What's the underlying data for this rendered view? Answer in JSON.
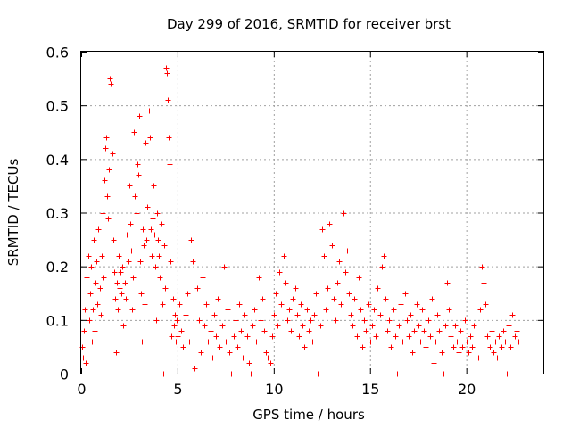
{
  "chart_data": {
    "type": "scatter",
    "title": "Day 299 of 2016, SRMTID for receiver brst",
    "xlabel": "GPS time / hours",
    "ylabel": "SRMTID / TECUs",
    "xlim": [
      0,
      24
    ],
    "ylim": [
      0,
      0.6
    ],
    "xticks": [
      0,
      5,
      10,
      15,
      20
    ],
    "xtick_labels": [
      "0",
      "5",
      "10",
      "15",
      "20"
    ],
    "yticks": [
      0,
      0.1,
      0.2,
      0.3,
      0.4,
      0.5,
      0.6
    ],
    "ytick_labels": [
      "0",
      "0.1",
      "0.2",
      "0.3",
      "0.4",
      "0.5",
      "0.6"
    ],
    "grid": true,
    "marker": "+",
    "colors": {
      "marker": "#ff0000"
    },
    "series": [
      {
        "name": "SRMTID",
        "points": [
          [
            0.05,
            0.05
          ],
          [
            0.1,
            0.03
          ],
          [
            0.15,
            0.08
          ],
          [
            0.2,
            0.12
          ],
          [
            0.25,
            0.02
          ],
          [
            0.3,
            0.18
          ],
          [
            0.35,
            0.22
          ],
          [
            0.4,
            0.1
          ],
          [
            0.45,
            0.15
          ],
          [
            0.5,
            0.2
          ],
          [
            0.55,
            0.06
          ],
          [
            0.6,
            0.12
          ],
          [
            0.65,
            0.25
          ],
          [
            0.7,
            0.08
          ],
          [
            0.75,
            0.17
          ],
          [
            0.8,
            0.21
          ],
          [
            0.85,
            0.13
          ],
          [
            0.9,
            0.27
          ],
          [
            0.95,
            0.16
          ],
          [
            1.0,
            0.11
          ],
          [
            1.05,
            0.22
          ],
          [
            1.1,
            0.3
          ],
          [
            1.15,
            0.18
          ],
          [
            1.2,
            0.36
          ],
          [
            1.25,
            0.42
          ],
          [
            1.3,
            0.44
          ],
          [
            1.35,
            0.33
          ],
          [
            1.4,
            0.29
          ],
          [
            1.45,
            0.38
          ],
          [
            1.5,
            0.55
          ],
          [
            1.55,
            0.54
          ],
          [
            1.6,
            0.41
          ],
          [
            1.65,
            0.25
          ],
          [
            1.7,
            0.19
          ],
          [
            1.75,
            0.14
          ],
          [
            1.8,
            0.04
          ],
          [
            1.85,
            0.17
          ],
          [
            1.9,
            0.12
          ],
          [
            1.95,
            0.22
          ],
          [
            2.0,
            0.16
          ],
          [
            2.05,
            0.19
          ],
          [
            2.1,
            0.15
          ],
          [
            2.15,
            0.2
          ],
          [
            2.2,
            0.09
          ],
          [
            2.25,
            0.17
          ],
          [
            2.3,
            0.14
          ],
          [
            2.35,
            0.26
          ],
          [
            2.4,
            0.32
          ],
          [
            2.45,
            0.21
          ],
          [
            2.5,
            0.35
          ],
          [
            2.55,
            0.28
          ],
          [
            2.6,
            0.23
          ],
          [
            2.65,
            0.12
          ],
          [
            2.7,
            0.18
          ],
          [
            2.75,
            0.45
          ],
          [
            2.8,
            0.33
          ],
          [
            2.85,
            0.3
          ],
          [
            2.9,
            0.39
          ],
          [
            2.95,
            0.37
          ],
          [
            3.0,
            0.48
          ],
          [
            3.05,
            0.21
          ],
          [
            3.1,
            0.15
          ],
          [
            3.15,
            0.06
          ],
          [
            3.2,
            0.27
          ],
          [
            3.25,
            0.24
          ],
          [
            3.3,
            0.13
          ],
          [
            3.35,
            0.43
          ],
          [
            3.4,
            0.25
          ],
          [
            3.45,
            0.31
          ],
          [
            3.5,
            0.49
          ],
          [
            3.55,
            0.44
          ],
          [
            3.6,
            0.27
          ],
          [
            3.65,
            0.22
          ],
          [
            3.7,
            0.29
          ],
          [
            3.75,
            0.35
          ],
          [
            3.8,
            0.26
          ],
          [
            3.85,
            0.2
          ],
          [
            3.9,
            0.1
          ],
          [
            3.95,
            0.3
          ],
          [
            4.0,
            0.25
          ],
          [
            4.05,
            0.22
          ],
          [
            4.1,
            0.18
          ],
          [
            4.15,
            0.28
          ],
          [
            4.2,
            0.13
          ],
          [
            4.25,
            0.0
          ],
          [
            4.3,
            0.24
          ],
          [
            4.35,
            0.16
          ],
          [
            4.4,
            0.57
          ],
          [
            4.45,
            0.56
          ],
          [
            4.5,
            0.51
          ],
          [
            4.55,
            0.44
          ],
          [
            4.6,
            0.39
          ],
          [
            4.65,
            0.21
          ],
          [
            4.7,
            0.07
          ],
          [
            4.75,
            0.14
          ],
          [
            4.8,
            0.09
          ],
          [
            4.85,
            0.11
          ],
          [
            4.9,
            0.06
          ],
          [
            4.95,
            0.1
          ],
          [
            5.0,
            0.07
          ],
          [
            5.1,
            0.13
          ],
          [
            5.2,
            0.08
          ],
          [
            5.3,
            0.05
          ],
          [
            5.4,
            0.11
          ],
          [
            5.5,
            0.15
          ],
          [
            5.6,
            0.06
          ],
          [
            5.7,
            0.25
          ],
          [
            5.8,
            0.21
          ],
          [
            5.9,
            0.01
          ],
          [
            6.0,
            0.16
          ],
          [
            6.1,
            0.1
          ],
          [
            6.2,
            0.04
          ],
          [
            6.3,
            0.18
          ],
          [
            6.4,
            0.09
          ],
          [
            6.5,
            0.13
          ],
          [
            6.6,
            0.06
          ],
          [
            6.7,
            0.08
          ],
          [
            6.8,
            0.03
          ],
          [
            6.9,
            0.11
          ],
          [
            7.0,
            0.07
          ],
          [
            7.1,
            0.14
          ],
          [
            7.2,
            0.05
          ],
          [
            7.3,
            0.09
          ],
          [
            7.4,
            0.2
          ],
          [
            7.5,
            0.06
          ],
          [
            7.6,
            0.12
          ],
          [
            7.7,
            0.04
          ],
          [
            7.8,
            0.0
          ],
          [
            7.9,
            0.07
          ],
          [
            8.0,
            0.1
          ],
          [
            8.1,
            0.05
          ],
          [
            8.2,
            0.13
          ],
          [
            8.3,
            0.08
          ],
          [
            8.4,
            0.03
          ],
          [
            8.5,
            0.11
          ],
          [
            8.6,
            0.07
          ],
          [
            8.7,
            0.02
          ],
          [
            8.8,
            0.0
          ],
          [
            8.9,
            0.09
          ],
          [
            9.0,
            0.12
          ],
          [
            9.1,
            0.06
          ],
          [
            9.2,
            0.18
          ],
          [
            9.3,
            0.1
          ],
          [
            9.4,
            0.14
          ],
          [
            9.5,
            0.08
          ],
          [
            9.6,
            0.04
          ],
          [
            9.7,
            0.03
          ],
          [
            9.8,
            0.02
          ],
          [
            9.9,
            0.07
          ],
          [
            10.0,
            0.11
          ],
          [
            10.1,
            0.15
          ],
          [
            10.2,
            0.09
          ],
          [
            10.3,
            0.19
          ],
          [
            10.4,
            0.13
          ],
          [
            10.5,
            0.22
          ],
          [
            10.6,
            0.17
          ],
          [
            10.7,
            0.1
          ],
          [
            10.8,
            0.12
          ],
          [
            10.9,
            0.08
          ],
          [
            11.0,
            0.14
          ],
          [
            11.1,
            0.16
          ],
          [
            11.2,
            0.11
          ],
          [
            11.3,
            0.07
          ],
          [
            11.4,
            0.13
          ],
          [
            11.5,
            0.09
          ],
          [
            11.6,
            0.05
          ],
          [
            11.7,
            0.12
          ],
          [
            11.8,
            0.08
          ],
          [
            11.9,
            0.1
          ],
          [
            12.0,
            0.06
          ],
          [
            12.1,
            0.11
          ],
          [
            12.2,
            0.15
          ],
          [
            12.3,
            0.0
          ],
          [
            12.4,
            0.09
          ],
          [
            12.5,
            0.27
          ],
          [
            12.6,
            0.22
          ],
          [
            12.7,
            0.12
          ],
          [
            12.8,
            0.16
          ],
          [
            12.9,
            0.28
          ],
          [
            13.0,
            0.24
          ],
          [
            13.1,
            0.14
          ],
          [
            13.2,
            0.1
          ],
          [
            13.3,
            0.17
          ],
          [
            13.4,
            0.21
          ],
          [
            13.5,
            0.13
          ],
          [
            13.6,
            0.3
          ],
          [
            13.7,
            0.19
          ],
          [
            13.8,
            0.23
          ],
          [
            13.9,
            0.15
          ],
          [
            14.0,
            0.11
          ],
          [
            14.1,
            0.09
          ],
          [
            14.2,
            0.14
          ],
          [
            14.3,
            0.07
          ],
          [
            14.4,
            0.18
          ],
          [
            14.5,
            0.12
          ],
          [
            14.6,
            0.05
          ],
          [
            14.7,
            0.1
          ],
          [
            14.8,
            0.08
          ],
          [
            14.9,
            0.13
          ],
          [
            15.0,
            0.06
          ],
          [
            15.1,
            0.09
          ],
          [
            15.2,
            0.12
          ],
          [
            15.3,
            0.07
          ],
          [
            15.4,
            0.16
          ],
          [
            15.5,
            0.11
          ],
          [
            15.6,
            0.2
          ],
          [
            15.7,
            0.22
          ],
          [
            15.8,
            0.14
          ],
          [
            15.9,
            0.08
          ],
          [
            16.0,
            0.1
          ],
          [
            16.1,
            0.05
          ],
          [
            16.2,
            0.12
          ],
          [
            16.3,
            0.07
          ],
          [
            16.4,
            0.0
          ],
          [
            16.5,
            0.09
          ],
          [
            16.6,
            0.13
          ],
          [
            16.7,
            0.06
          ],
          [
            16.8,
            0.15
          ],
          [
            16.9,
            0.1
          ],
          [
            17.0,
            0.07
          ],
          [
            17.1,
            0.11
          ],
          [
            17.2,
            0.04
          ],
          [
            17.3,
            0.08
          ],
          [
            17.4,
            0.13
          ],
          [
            17.5,
            0.09
          ],
          [
            17.6,
            0.06
          ],
          [
            17.7,
            0.12
          ],
          [
            17.8,
            0.08
          ],
          [
            17.9,
            0.05
          ],
          [
            18.0,
            0.1
          ],
          [
            18.1,
            0.07
          ],
          [
            18.2,
            0.14
          ],
          [
            18.3,
            0.02
          ],
          [
            18.4,
            0.06
          ],
          [
            18.5,
            0.11
          ],
          [
            18.6,
            0.08
          ],
          [
            18.7,
            0.04
          ],
          [
            18.8,
            0.0
          ],
          [
            18.9,
            0.09
          ],
          [
            19.0,
            0.17
          ],
          [
            19.1,
            0.12
          ],
          [
            19.2,
            0.07
          ],
          [
            19.3,
            0.05
          ],
          [
            19.4,
            0.09
          ],
          [
            19.5,
            0.06
          ],
          [
            19.6,
            0.04
          ],
          [
            19.7,
            0.08
          ],
          [
            19.8,
            0.05
          ],
          [
            19.9,
            0.1
          ],
          [
            20.0,
            0.06
          ],
          [
            20.1,
            0.04
          ],
          [
            20.2,
            0.07
          ],
          [
            20.3,
            0.05
          ],
          [
            20.4,
            0.09
          ],
          [
            20.5,
            0.06
          ],
          [
            20.6,
            0.03
          ],
          [
            20.7,
            0.12
          ],
          [
            20.8,
            0.2
          ],
          [
            20.9,
            0.17
          ],
          [
            21.0,
            0.13
          ],
          [
            21.1,
            0.07
          ],
          [
            21.2,
            0.05
          ],
          [
            21.3,
            0.08
          ],
          [
            21.4,
            0.04
          ],
          [
            21.5,
            0.06
          ],
          [
            21.6,
            0.03
          ],
          [
            21.7,
            0.07
          ],
          [
            21.8,
            0.05
          ],
          [
            21.9,
            0.08
          ],
          [
            22.0,
            0.06
          ],
          [
            22.1,
            0.0
          ],
          [
            22.2,
            0.09
          ],
          [
            22.3,
            0.05
          ],
          [
            22.4,
            0.11
          ],
          [
            22.5,
            0.07
          ],
          [
            22.6,
            0.08
          ],
          [
            22.7,
            0.06
          ]
        ]
      }
    ]
  }
}
